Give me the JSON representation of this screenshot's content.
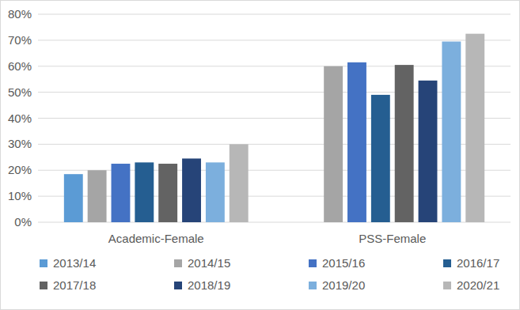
{
  "chart_data": {
    "type": "bar",
    "categories": [
      "Academic-Female",
      "PSS-Female"
    ],
    "series": [
      {
        "name": "2013/14",
        "color": "#5b9bd5",
        "values": [
          18.5,
          null
        ]
      },
      {
        "name": "2014/15",
        "color": "#a5a5a5",
        "values": [
          20,
          60
        ]
      },
      {
        "name": "2015/16",
        "color": "#4472c4",
        "values": [
          22.5,
          61.5
        ]
      },
      {
        "name": "2016/17",
        "color": "#255e91",
        "values": [
          23,
          49
        ]
      },
      {
        "name": "2017/18",
        "color": "#636363",
        "values": [
          22.5,
          60.5
        ]
      },
      {
        "name": "2018/19",
        "color": "#264478",
        "values": [
          24.5,
          54.5
        ]
      },
      {
        "name": "2019/20",
        "color": "#7cafdd",
        "values": [
          23,
          69.5
        ]
      },
      {
        "name": "2020/21",
        "color": "#b7b7b7",
        "values": [
          30,
          72.5
        ]
      }
    ],
    "ylim": [
      0,
      80
    ],
    "yticks": [
      {
        "value": 0,
        "label": "0%"
      },
      {
        "value": 10,
        "label": "10%"
      },
      {
        "value": 20,
        "label": "20%"
      },
      {
        "value": 30,
        "label": "30%"
      },
      {
        "value": 40,
        "label": "40%"
      },
      {
        "value": 50,
        "label": "50%"
      },
      {
        "value": 60,
        "label": "60%"
      },
      {
        "value": 70,
        "label": "70%"
      },
      {
        "value": 80,
        "label": "80%"
      }
    ],
    "grid": true,
    "legend": "bottom"
  }
}
